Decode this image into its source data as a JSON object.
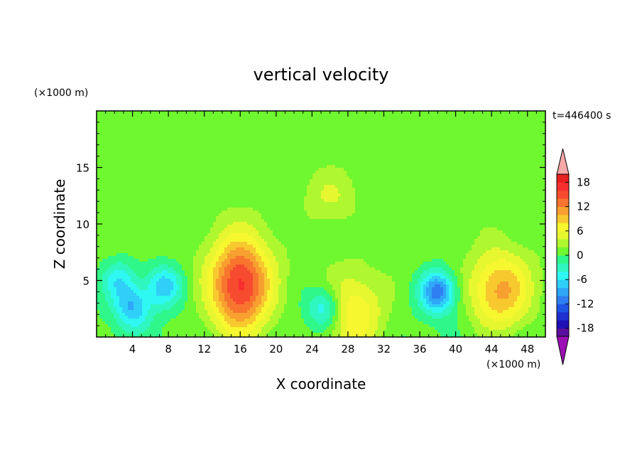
{
  "chart_data": {
    "type": "heatmap",
    "title": "vertical velocity",
    "xlabel": "X coordinate",
    "ylabel": "Z coordinate",
    "x_unit_label": "(×1000 m)",
    "y_unit_label": "(×1000 m)",
    "time_label": "t=446400 s",
    "xlim": [
      0,
      50
    ],
    "ylim": [
      0,
      20
    ],
    "x_ticks": [
      4,
      8,
      12,
      16,
      20,
      24,
      28,
      32,
      36,
      40,
      44,
      48
    ],
    "y_ticks": [
      5,
      10,
      15
    ],
    "colorbar": {
      "levels": [
        -20,
        -18,
        -16,
        -14,
        -12,
        -10,
        -8,
        -6,
        -4,
        -2,
        0,
        2,
        4,
        6,
        8,
        10,
        12,
        14,
        16,
        18,
        20
      ],
      "tick_labels": [
        18,
        12,
        6,
        0,
        -6,
        -12,
        -18
      ],
      "colors": [
        "#5a0f9e",
        "#1f0fb4",
        "#1f2fd0",
        "#1f55e6",
        "#2f7ff2",
        "#2fa7f7",
        "#2fcff7",
        "#2ff7f2",
        "#2ff7bf",
        "#2ff78a",
        "#6ff72f",
        "#aff72f",
        "#e6f72f",
        "#f7f72f",
        "#f7c92f",
        "#f79f2f",
        "#f7752f",
        "#f74b2f",
        "#f72f2f",
        "#e61f1f"
      ],
      "over_color": "#f7a7a7",
      "under_color": "#9a0fb4"
    },
    "field_features": [
      {
        "kind": "updraft",
        "x": 16,
        "z": 4.5,
        "peak": 16
      },
      {
        "kind": "updraft",
        "x": 45,
        "z": 4,
        "peak": 10
      },
      {
        "kind": "updraft",
        "x": 28.5,
        "z": 2,
        "peak": 8
      },
      {
        "kind": "downdraft",
        "x": 38,
        "z": 4,
        "peak": -12
      },
      {
        "kind": "downdraft",
        "x": 7.5,
        "z": 4.5,
        "peak": -8
      },
      {
        "kind": "downdraft",
        "x": 4,
        "z": 2.5,
        "peak": -8
      },
      {
        "kind": "downdraft",
        "x": 25.5,
        "z": 2.5,
        "peak": -8
      },
      {
        "kind": "downdraft",
        "x": 2.5,
        "z": 5,
        "peak": -6
      },
      {
        "kind": "updraft",
        "x": 26,
        "z": 12.5,
        "peak": 3
      }
    ]
  }
}
